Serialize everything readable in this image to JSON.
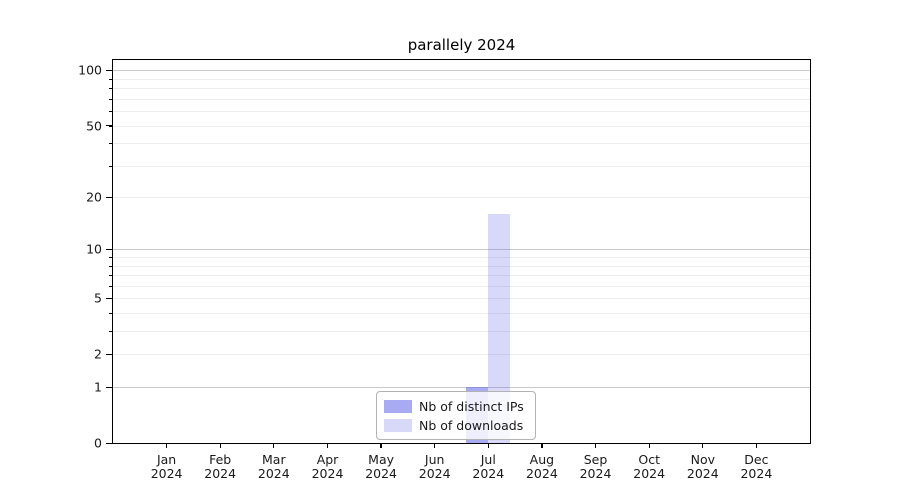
{
  "chart_data": {
    "type": "bar",
    "title": "parallely 2024",
    "categories": [
      [
        "Jan",
        "2024"
      ],
      [
        "Feb",
        "2024"
      ],
      [
        "Mar",
        "2024"
      ],
      [
        "Apr",
        "2024"
      ],
      [
        "May",
        "2024"
      ],
      [
        "Jun",
        "2024"
      ],
      [
        "Jul",
        "2024"
      ],
      [
        "Aug",
        "2024"
      ],
      [
        "Sep",
        "2024"
      ],
      [
        "Oct",
        "2024"
      ],
      [
        "Nov",
        "2024"
      ],
      [
        "Dec",
        "2024"
      ]
    ],
    "series": [
      {
        "name": "Nb of distinct IPs",
        "color": "rgba(99,102,232,0.55)",
        "values": [
          0,
          0,
          0,
          0,
          0,
          0,
          1,
          0,
          0,
          0,
          0,
          0
        ]
      },
      {
        "name": "Nb of downloads",
        "color": "rgba(99,102,232,0.25)",
        "values": [
          0,
          0,
          0,
          0,
          0,
          0,
          16,
          0,
          0,
          0,
          0,
          0
        ]
      }
    ],
    "xlabel": "",
    "ylabel": "",
    "yscale": "symlog-log1p",
    "ylim": [
      0,
      114
    ],
    "y_ticks": [
      0,
      1,
      2,
      5,
      10,
      20,
      50,
      100
    ],
    "y_gridlines_major": [
      1,
      10,
      100
    ],
    "y_gridlines_minor": [
      2,
      3,
      4,
      5,
      6,
      7,
      8,
      9,
      20,
      30,
      40,
      50,
      60,
      70,
      80,
      90
    ],
    "grid": true,
    "legend_position": "lower center",
    "colors": {
      "axis": "#000000",
      "grid_major": "#c9c9c9",
      "grid_minor": "#ededed",
      "text": "#1a1a1a",
      "legend_border": "#b3b3b3",
      "legend_bg": "rgba(255,255,255,0.8)"
    }
  }
}
